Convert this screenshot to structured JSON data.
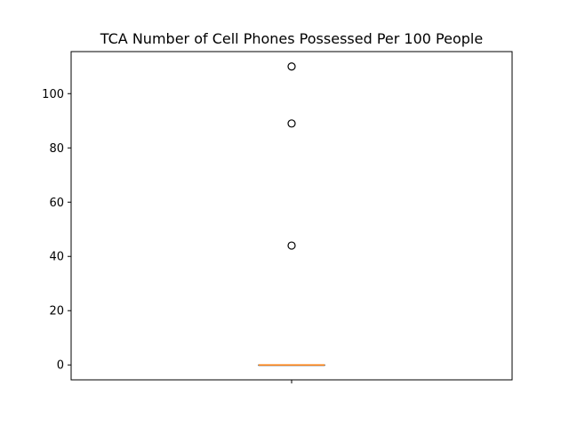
{
  "chart_data": {
    "type": "box",
    "title": "TCA Number of Cell Phones Possessed Per 100 People",
    "xlabel": "",
    "ylabel": "",
    "ylim": [
      -5.5,
      115.5
    ],
    "yticks": [
      0,
      20,
      40,
      60,
      80,
      100
    ],
    "grid": false,
    "series": [
      {
        "whisker_low": 0,
        "q1": 0,
        "median": 0,
        "q3": 0,
        "whisker_high": 0,
        "outliers": [
          44,
          89,
          110
        ]
      }
    ],
    "colors": {
      "median": "#ff7f0e",
      "box": "#000000",
      "outlier": "#000000"
    }
  }
}
